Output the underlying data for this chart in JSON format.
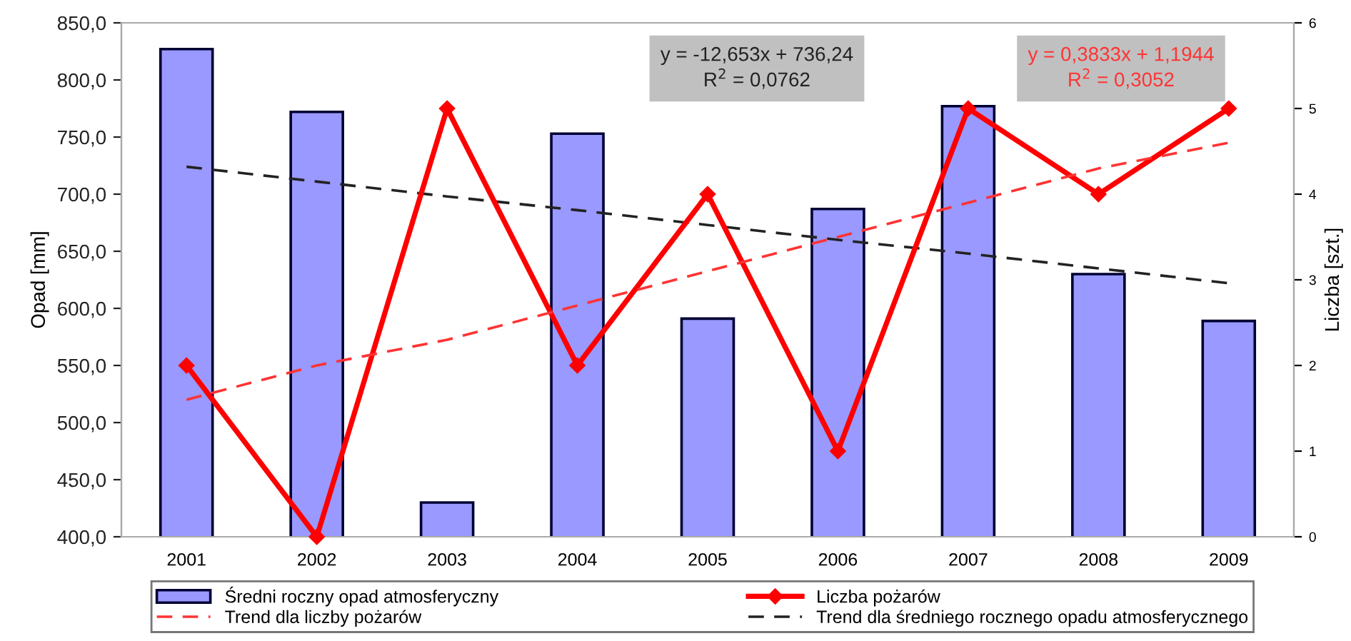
{
  "chart_data": {
    "type": "bar",
    "ylabel": "Opad [mm]",
    "y2label": "Liczba [szt.]",
    "categories": [
      "2001",
      "2002",
      "2003",
      "2004",
      "2005",
      "2006",
      "2007",
      "2008",
      "2009"
    ],
    "series": [
      {
        "name": "Średni roczny opad atmosferyczny",
        "color": "#9999ff",
        "values": [
          827,
          772,
          430,
          753,
          591,
          687,
          777,
          630,
          589
        ]
      },
      {
        "name": "Liczba pożarów",
        "type": "line",
        "axis": "y2",
        "color": "#ff0000",
        "marker": "diamond",
        "line_style": "solid",
        "values": [
          2,
          0,
          5,
          2,
          4,
          1,
          5,
          4,
          5
        ]
      },
      {
        "name": "Trend dla liczby pożarów",
        "type": "line",
        "axis": "y2",
        "color": "#ff3333",
        "marker": "none",
        "line_style": "dashed",
        "values": [
          1.6,
          2.0,
          2.3,
          2.7,
          3.1,
          3.5,
          3.9,
          4.3,
          4.6
        ]
      },
      {
        "name": "Trend dla średniego rocznego opadu atmosferycznego",
        "type": "line",
        "color": "#222222",
        "marker": "none",
        "line_style": "dashed",
        "values": [
          724,
          711,
          698,
          686,
          673,
          660,
          648,
          635,
          622
        ]
      }
    ],
    "ylim": [
      400,
      850
    ],
    "yticks": [
      {
        "value": 400,
        "label": "400,0"
      },
      {
        "value": 450,
        "label": "450,0"
      },
      {
        "value": 500,
        "label": "500,0"
      },
      {
        "value": 550,
        "label": "550,0"
      },
      {
        "value": 600,
        "label": "600,0"
      },
      {
        "value": 650,
        "label": "650,0"
      },
      {
        "value": 700,
        "label": "700,0"
      },
      {
        "value": 750,
        "label": "750,0"
      },
      {
        "value": 800,
        "label": "800,0"
      },
      {
        "value": 850,
        "label": "850,0"
      }
    ],
    "y2lim": [
      0,
      6
    ],
    "y2ticks": [
      0,
      1,
      2,
      3,
      4,
      5,
      6
    ],
    "annotations": [
      "y = -12,653x + 736,24\nR$^{2}$ = 0,0762",
      "y = 0,3833x + 1,1944\nR$^{2}$ = 0,3052"
    ],
    "grid": false,
    "legend": "bottom"
  }
}
